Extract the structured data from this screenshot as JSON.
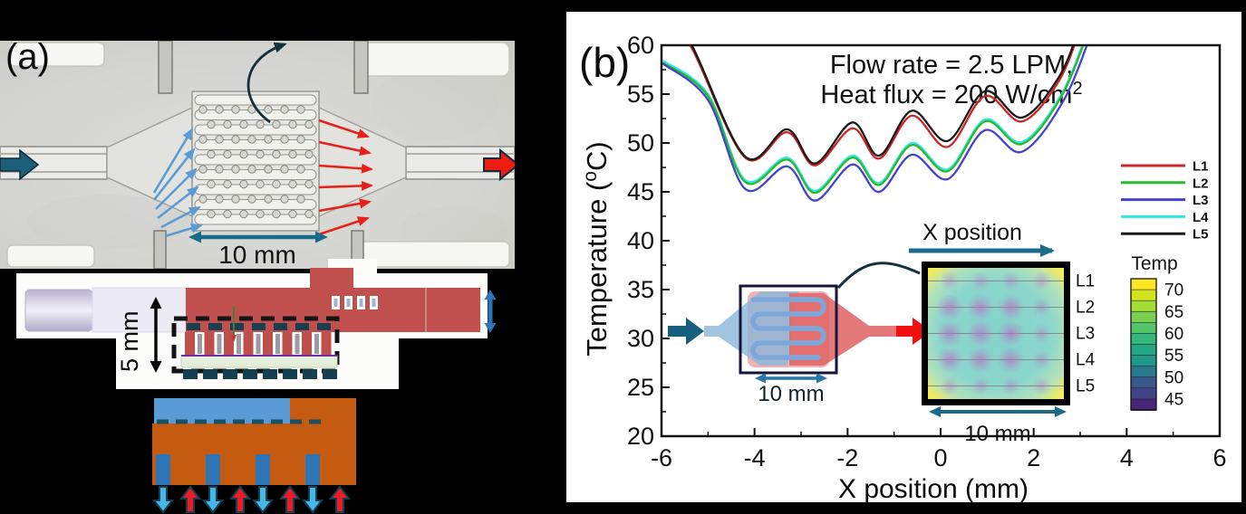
{
  "figure": {
    "panel_a": {
      "label": "(a)",
      "scale_label": "10 mm",
      "thickness_label": "5 mm"
    },
    "panel_b": {
      "label": "(b)",
      "inset_device_scale": "10 mm",
      "inset_map_scale": "10 mm"
    }
  },
  "chart_data": {
    "type": "line",
    "annotation": {
      "line1": "Flow rate = 2.5 LPM,",
      "line2": "Heat flux = 200 W/cm",
      "line2_sup": "2"
    },
    "xlabel": "X position (mm)",
    "ylabel_parts": [
      "Temperature (",
      "o",
      "C)"
    ],
    "xlim": [
      -6,
      6
    ],
    "ylim": [
      20,
      60
    ],
    "xticks": [
      -6,
      -4,
      -2,
      0,
      2,
      4,
      6
    ],
    "xticks_minor": [
      -5,
      -3,
      -1,
      1,
      3,
      5
    ],
    "yticks": [
      20,
      25,
      30,
      35,
      40,
      45,
      50,
      55,
      60
    ],
    "yticks_minor": [
      22.5,
      27.5,
      32.5,
      37.5,
      42.5,
      47.5,
      52.5,
      57.5
    ],
    "grid": false,
    "legend_position": "right",
    "legend": [
      {
        "name": "L1",
        "color": "#cc2626"
      },
      {
        "name": "L2",
        "color": "#2eb82e"
      },
      {
        "name": "L3",
        "color": "#4343cf"
      },
      {
        "name": "L4",
        "color": "#2ee6e6"
      },
      {
        "name": "L5",
        "color": "#1a1a1a"
      }
    ],
    "series": [
      {
        "name": "L4",
        "color": "#2ee6e6",
        "points": [
          [
            -6,
            58.5
          ],
          [
            -5.0,
            55.0
          ],
          [
            -4.2,
            46.2
          ],
          [
            -3.3,
            48.5
          ],
          [
            -2.7,
            45.1
          ],
          [
            -1.9,
            48.7
          ],
          [
            -1.32,
            45.9
          ],
          [
            -0.62,
            50.0
          ],
          [
            0.15,
            47.3
          ],
          [
            0.95,
            52.4
          ],
          [
            1.75,
            50.1
          ],
          [
            2.6,
            55.0
          ],
          [
            3.2,
            62
          ]
        ]
      },
      {
        "name": "L2",
        "color": "#2eb82e",
        "points": [
          [
            -6,
            58.3
          ],
          [
            -5.0,
            54.8
          ],
          [
            -4.2,
            46.0
          ],
          [
            -3.3,
            48.3
          ],
          [
            -2.7,
            44.9
          ],
          [
            -1.9,
            48.5
          ],
          [
            -1.32,
            45.7
          ],
          [
            -0.62,
            49.8
          ],
          [
            0.15,
            47.1
          ],
          [
            0.95,
            52.2
          ],
          [
            1.75,
            49.9
          ],
          [
            2.6,
            54.8
          ],
          [
            3.22,
            62
          ]
        ]
      },
      {
        "name": "L3",
        "color": "#4343cf",
        "points": [
          [
            -6,
            58.2
          ],
          [
            -5.0,
            54.4
          ],
          [
            -4.2,
            45.3
          ],
          [
            -3.3,
            47.6
          ],
          [
            -2.7,
            44.1
          ],
          [
            -1.9,
            47.8
          ],
          [
            -1.32,
            45.0
          ],
          [
            -0.62,
            48.8
          ],
          [
            0.15,
            46.3
          ],
          [
            0.95,
            51.3
          ],
          [
            1.75,
            49.1
          ],
          [
            2.65,
            54.4
          ],
          [
            3.3,
            62
          ]
        ]
      },
      {
        "name": "L1",
        "color": "#cc2626",
        "points": [
          [
            -6,
            63.6
          ],
          [
            -5.35,
            59.7
          ],
          [
            -4.2,
            48.5
          ],
          [
            -3.3,
            51.1
          ],
          [
            -2.7,
            47.7
          ],
          [
            -1.9,
            51.5
          ],
          [
            -1.32,
            48.4
          ],
          [
            -0.62,
            52.8
          ],
          [
            0.15,
            49.6
          ],
          [
            0.95,
            54.8
          ],
          [
            1.75,
            52.2
          ],
          [
            2.55,
            56.4
          ],
          [
            3.02,
            62
          ]
        ]
      },
      {
        "name": "L5",
        "color": "#1a1a1a",
        "points": [
          [
            -6,
            64.0
          ],
          [
            -5.35,
            60.0
          ],
          [
            -4.2,
            48.6
          ],
          [
            -3.3,
            51.4
          ],
          [
            -2.7,
            47.9
          ],
          [
            -1.9,
            52.1
          ],
          [
            -1.32,
            48.7
          ],
          [
            -0.62,
            53.3
          ],
          [
            0.15,
            50.2
          ],
          [
            0.95,
            55.3
          ],
          [
            1.75,
            52.6
          ],
          [
            2.55,
            56.8
          ],
          [
            3.0,
            62
          ]
        ]
      }
    ],
    "colorbar": {
      "title": "Temp",
      "range": [
        42.5,
        72.5
      ],
      "ticks": [
        70,
        65,
        60,
        55,
        50,
        45
      ],
      "colors": [
        "#fde725",
        "#d2e21b",
        "#a5db36",
        "#7ad151",
        "#54c568",
        "#35b779",
        "#22a884",
        "#1f988b",
        "#2a788e",
        "#38588c",
        "#414487",
        "#482475"
      ]
    },
    "heatmap_inset": {
      "row_labels": [
        "L1",
        "L2",
        "L3",
        "L4",
        "L5"
      ],
      "x_label": "X position",
      "scale": "10 mm"
    }
  }
}
